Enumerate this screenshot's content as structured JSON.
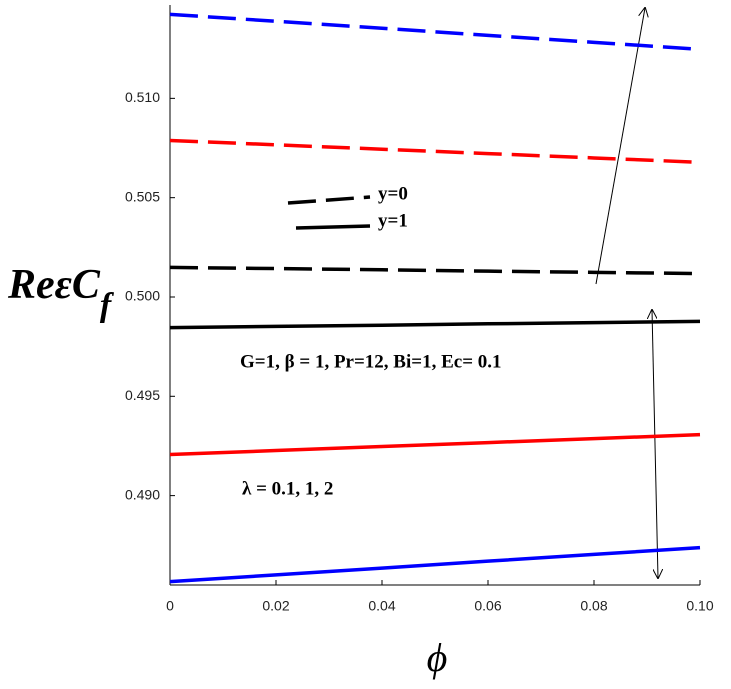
{
  "chart_data": {
    "type": "line",
    "xlabel": "ϕ",
    "ylabel": [
      "ReεC",
      "f"
    ],
    "x": [
      0,
      0.02,
      0.04,
      0.06,
      0.08,
      0.1
    ],
    "series": [
      {
        "color": "#0000ff",
        "dash": true,
        "values": [
          0.51423,
          0.51388,
          0.51353,
          0.51317,
          0.51282,
          0.51247
        ]
      },
      {
        "color": "#ff0000",
        "dash": true,
        "values": [
          0.50788,
          0.50766,
          0.50744,
          0.50722,
          0.507,
          0.50678
        ]
      },
      {
        "color": "#000000",
        "dash": true,
        "values": [
          0.50149,
          0.50143,
          0.50137,
          0.5013,
          0.50124,
          0.50118
        ]
      },
      {
        "color": "#000000",
        "dash": false,
        "values": [
          0.49846,
          0.49852,
          0.49858,
          0.49865,
          0.49871,
          0.49877
        ]
      },
      {
        "color": "#ff0000",
        "dash": false,
        "values": [
          0.49207,
          0.49227,
          0.49247,
          0.49267,
          0.49287,
          0.49307
        ]
      },
      {
        "color": "#0000ff",
        "dash": false,
        "values": [
          0.48567,
          0.48601,
          0.48635,
          0.4867,
          0.48704,
          0.48738
        ]
      }
    ],
    "legend": [
      {
        "label": "y=0",
        "dash": true
      },
      {
        "label": "y=1",
        "dash": false
      }
    ],
    "annotations": [
      "G=1, β = 1, Pr=12, Bi=1,  Ec= 0.1",
      "λ = 0.1, 1, 2"
    ],
    "xlim": [
      0,
      0.1
    ],
    "ylim": [
      0.4855,
      0.5147
    ],
    "xticks": [
      0,
      0.02,
      0.04,
      0.06,
      0.08,
      {
        "value": 0.1,
        "label": "0.10"
      }
    ],
    "yticks": [
      {
        "value": 0.49,
        "label": "0.490"
      },
      0.495,
      {
        "value": 0.5,
        "label": "0.500"
      },
      0.505,
      {
        "value": 0.51,
        "label": "0.510"
      }
    ]
  }
}
